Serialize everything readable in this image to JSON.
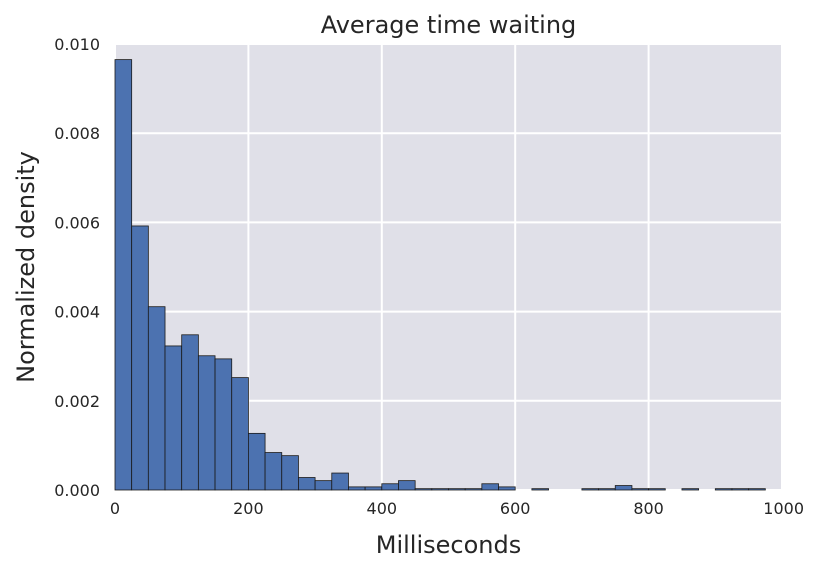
{
  "chart_data": {
    "type": "bar",
    "title": "Average time waiting",
    "xlabel": "Milliseconds",
    "ylabel": "Normalized density",
    "xlim": [
      0,
      1000
    ],
    "ylim": [
      0,
      0.01
    ],
    "x_ticks": [
      {
        "value": 0,
        "label": "0"
      },
      {
        "value": 200,
        "label": "200"
      },
      {
        "value": 400,
        "label": "400"
      },
      {
        "value": 600,
        "label": "600"
      },
      {
        "value": 800,
        "label": "800"
      },
      {
        "value": 1000,
        "label": "1000"
      }
    ],
    "y_ticks": [
      {
        "value": 0.0,
        "label": "0.000"
      },
      {
        "value": 0.002,
        "label": "0.002"
      },
      {
        "value": 0.004,
        "label": "0.004"
      },
      {
        "value": 0.006,
        "label": "0.006"
      },
      {
        "value": 0.008,
        "label": "0.008"
      },
      {
        "value": 0.01,
        "label": "0.010"
      }
    ],
    "grid": true,
    "bin_width": 25,
    "bins": [
      0,
      25,
      50,
      75,
      100,
      125,
      150,
      175,
      200,
      225,
      250,
      275,
      300,
      325,
      350,
      375,
      400,
      425,
      450,
      475,
      500,
      525,
      550,
      575,
      600,
      625,
      650,
      675,
      700,
      725,
      750,
      775,
      800,
      825,
      850,
      875,
      900,
      925,
      950
    ],
    "values": [
      0.00965,
      0.00592,
      0.00411,
      0.00323,
      0.00348,
      0.00301,
      0.00294,
      0.00252,
      0.00127,
      0.00084,
      0.00077,
      0.00028,
      0.00021,
      0.00038,
      7e-05,
      7e-05,
      0.00014,
      0.00021,
      3e-05,
      3e-05,
      3e-05,
      3e-05,
      0.00014,
      7e-05,
      0.0,
      3e-05,
      0.0,
      0.0,
      3e-05,
      3e-05,
      0.0001,
      3e-05,
      3e-05,
      0.0,
      3e-05,
      0.0,
      3e-05,
      3e-05,
      3e-05
    ],
    "colors": {
      "bar_fill": "#4c72b0",
      "bar_edge": "#1a1a1a",
      "plot_bg": "#e0e0e8",
      "grid": "#ffffff",
      "text": "#262626"
    }
  }
}
